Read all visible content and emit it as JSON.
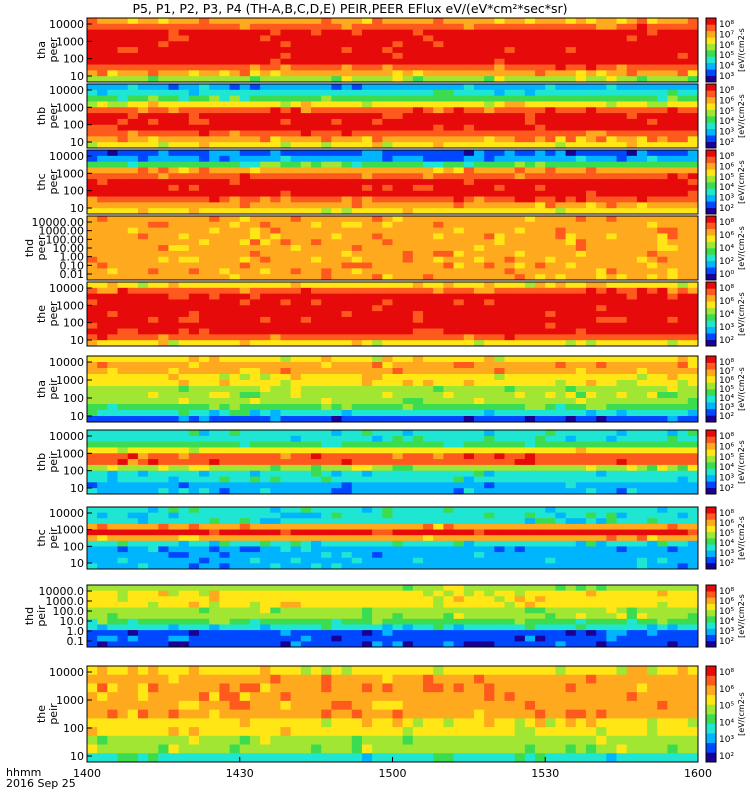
{
  "title": "P5, P1, P2, P3, P4 (TH-A,B,C,D,E) PEIR,PEER EFlux eV/(eV*cm²*sec*sr)",
  "x_axis": {
    "label_time": "hhmm",
    "label_date": "2016 Sep 25",
    "ticks": [
      "1400",
      "1430",
      "1500",
      "1530",
      "1600"
    ]
  },
  "colorbar_label": "[eV/(cm2-s",
  "colors": {
    "background": "#ffffff",
    "colormap": [
      "#1a0096",
      "#0048ff",
      "#00b4ff",
      "#1ee6d2",
      "#3cdc50",
      "#a0e632",
      "#ffe614",
      "#ffaa1e",
      "#ff5a1e",
      "#e60a0a"
    ]
  },
  "chart_data": [
    {
      "type": "heatmap",
      "probe": "tha",
      "species": "peer",
      "label1": "tha",
      "label2": "peer",
      "yticks": [
        "10000",
        "1000",
        "100",
        "10"
      ],
      "cbar_ticks": [
        "10⁸",
        "10⁷",
        "10⁶",
        "10⁵",
        "10⁴",
        "10³"
      ]
    },
    {
      "type": "heatmap",
      "probe": "thb",
      "species": "peer",
      "label1": "thb",
      "label2": "peer",
      "yticks": [
        "10000",
        "1000",
        "100",
        "10"
      ],
      "cbar_ticks": [
        "10⁸",
        "10⁶",
        "10⁵",
        "10⁴",
        "10³",
        "10²"
      ]
    },
    {
      "type": "heatmap",
      "probe": "thc",
      "species": "peer",
      "label1": "thc",
      "label2": "peer",
      "yticks": [
        "10000",
        "1000",
        "100",
        "10"
      ],
      "cbar_ticks": [
        "10⁸",
        "10⁶",
        "10⁵",
        "10⁴",
        "10³",
        "10²"
      ]
    },
    {
      "type": "heatmap",
      "probe": "thd",
      "species": "peer",
      "label1": "thd",
      "label2": "peer",
      "yticks": [
        "10000.00",
        "1000.00",
        "100.00",
        "10.00",
        "1.00",
        "0.10",
        "0.01"
      ],
      "cbar_ticks": [
        "10⁸",
        "10⁶",
        "10⁴",
        "10²",
        "10⁰"
      ]
    },
    {
      "type": "heatmap",
      "probe": "the",
      "species": "peer",
      "label1": "the",
      "label2": "peer",
      "yticks": [
        "10000",
        "1000",
        "100",
        "10"
      ],
      "cbar_ticks": [
        "10⁸",
        "10⁶",
        "10⁴",
        "10³",
        "10²"
      ]
    },
    {
      "type": "heatmap",
      "probe": "tha",
      "species": "peir",
      "label1": "tha",
      "label2": "peir",
      "yticks": [
        "10000",
        "1000",
        "100",
        "10"
      ],
      "cbar_ticks": [
        "10⁸",
        "10⁷",
        "10⁶",
        "10⁵",
        "10⁴",
        "10³",
        "10²"
      ]
    },
    {
      "type": "heatmap",
      "probe": "thb",
      "species": "peir",
      "label1": "thb",
      "label2": "peir",
      "yticks": [
        "10000",
        "1000",
        "100",
        "10"
      ],
      "cbar_ticks": [
        "10⁸",
        "10⁶",
        "10⁵",
        "10⁴",
        "10³",
        "10²"
      ]
    },
    {
      "type": "heatmap",
      "probe": "thc",
      "species": "peir",
      "label1": "thc",
      "label2": "peir",
      "yticks": [
        "10000",
        "1000",
        "100",
        "10"
      ],
      "cbar_ticks": [
        "10⁸",
        "10⁶",
        "10⁵",
        "10⁴",
        "10³",
        "10²"
      ]
    },
    {
      "type": "heatmap",
      "probe": "thd",
      "species": "peir",
      "label1": "thd",
      "label2": "peir",
      "yticks": [
        "10000.0",
        "1000.0",
        "100.0",
        "10.0",
        "1.0",
        "0.1"
      ],
      "cbar_ticks": [
        "10⁸",
        "10⁶",
        "10⁵",
        "10⁴",
        "10³",
        "10²"
      ]
    },
    {
      "type": "heatmap",
      "probe": "the",
      "species": "peir",
      "label1": "the",
      "label2": "peir",
      "yticks": [
        "10000",
        "1000",
        "100",
        "10"
      ],
      "cbar_ticks": [
        "10⁸",
        "10⁶",
        "10⁵",
        "10⁴",
        "10³",
        "10²"
      ]
    }
  ]
}
